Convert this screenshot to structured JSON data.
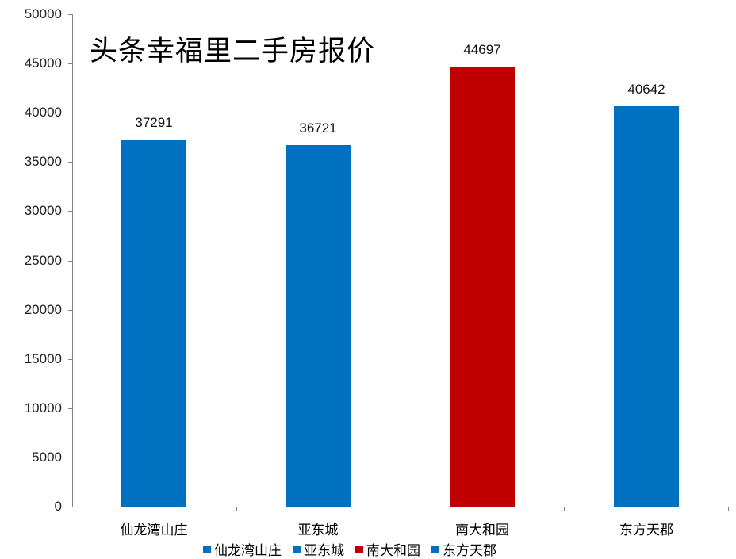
{
  "chart_data": {
    "type": "bar",
    "title": "头条幸福里二手房报价",
    "categories": [
      "仙龙湾山庄",
      "亚东城",
      "南大和园",
      "东方天郡"
    ],
    "values": [
      37291,
      36721,
      44697,
      40642
    ],
    "colors": [
      "#0070C0",
      "#0070C0",
      "#C00000",
      "#0070C0"
    ],
    "series": [
      {
        "name": "仙龙湾山庄",
        "values": [
          37291
        ],
        "color": "#0070C0"
      },
      {
        "name": "亚东城",
        "values": [
          36721
        ],
        "color": "#0070C0"
      },
      {
        "name": "南大和园",
        "values": [
          44697
        ],
        "color": "#C00000"
      },
      {
        "name": "东方天郡",
        "values": [
          40642
        ],
        "color": "#0070C0"
      }
    ],
    "data_labels": [
      "37291",
      "36721",
      "44697",
      "40642"
    ],
    "xlabel": "",
    "ylabel": "",
    "ylim": [
      0,
      50000
    ],
    "yticks": [
      "0",
      "5000",
      "10000",
      "15000",
      "20000",
      "25000",
      "30000",
      "35000",
      "40000",
      "45000",
      "50000"
    ],
    "grid": false,
    "legend_position": "bottom",
    "legend": [
      "仙龙湾山庄",
      "亚东城",
      "南大和园",
      "东方天郡"
    ]
  }
}
